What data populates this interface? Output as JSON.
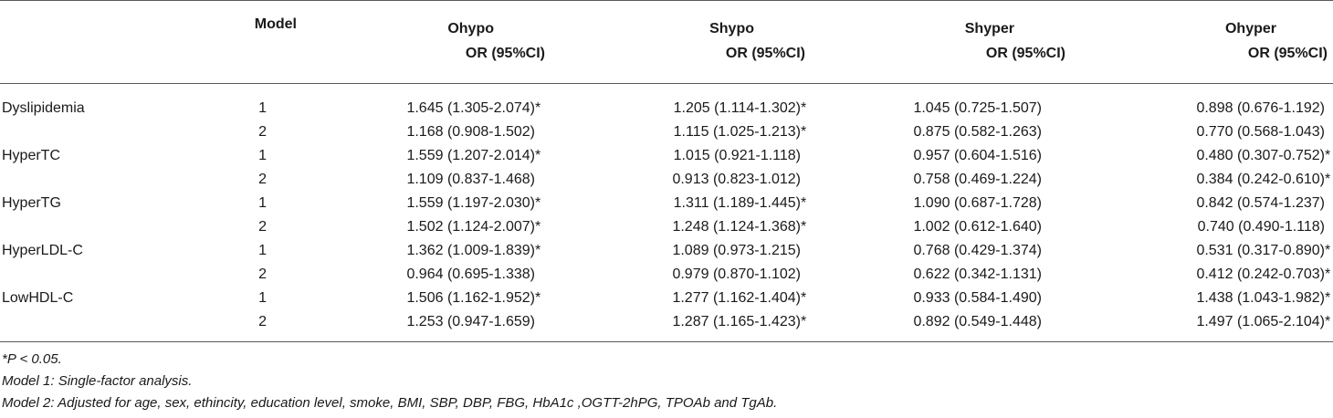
{
  "table": {
    "headers": {
      "model": "Model",
      "cols": [
        {
          "line1": "Ohypo",
          "line2": "OR (95%CI)"
        },
        {
          "line1": "Shypo",
          "line2": "OR (95%CI)"
        },
        {
          "line1": "Shyper",
          "line2": "OR (95%CI)"
        },
        {
          "line1": "Ohyper",
          "line2": "OR (95%CI)"
        }
      ]
    },
    "rows": [
      {
        "label": "Dyslipidemia",
        "model": "1",
        "c": [
          {
            "v": "1.645 (1.305-2.074)",
            "s": "*"
          },
          {
            "v": "1.205 (1.114-1.302)",
            "s": "*"
          },
          {
            "v": "1.045 (0.725-1.507)",
            "s": ""
          },
          {
            "v": "0.898 (0.676-1.192)",
            "s": ""
          }
        ]
      },
      {
        "label": "",
        "model": "2",
        "c": [
          {
            "v": "1.168 (0.908-1.502)",
            "s": ""
          },
          {
            "v": "1.115 (1.025-1.213)",
            "s": "*"
          },
          {
            "v": "0.875 (0.582-1.263)",
            "s": ""
          },
          {
            "v": "0.770 (0.568-1.043)",
            "s": ""
          }
        ]
      },
      {
        "label": "HyperTC",
        "model": "1",
        "c": [
          {
            "v": "1.559 (1.207-2.014)",
            "s": "*"
          },
          {
            "v": "1.015 (0.921-1.118)",
            "s": ""
          },
          {
            "v": "0.957 (0.604-1.516)",
            "s": ""
          },
          {
            "v": "0.480 (0.307-0.752)",
            "s": "*"
          }
        ]
      },
      {
        "label": "",
        "model": "2",
        "c": [
          {
            "v": "1.109 (0.837-1.468)",
            "s": ""
          },
          {
            "v": "0.913 (0.823-1.012)",
            "s": ""
          },
          {
            "v": "0.758 (0.469-1.224)",
            "s": ""
          },
          {
            "v": "0.384 (0.242-0.610)",
            "s": "*"
          }
        ]
      },
      {
        "label": "HyperTG",
        "model": "1",
        "c": [
          {
            "v": "1.559 (1.197-2.030)",
            "s": "*"
          },
          {
            "v": "1.311 (1.189-1.445)",
            "s": "*"
          },
          {
            "v": "1.090 (0.687-1.728)",
            "s": ""
          },
          {
            "v": "0.842 (0.574-1.237)",
            "s": ""
          }
        ]
      },
      {
        "label": "",
        "model": "2",
        "c": [
          {
            "v": "1.502 (1.124-2.007)",
            "s": "*"
          },
          {
            "v": "1.248 (1.124-1.368)",
            "s": "*"
          },
          {
            "v": "1.002 (0.612-1.640)",
            "s": ""
          },
          {
            "v": "0.740 (0.490-1.118)",
            "s": ""
          }
        ]
      },
      {
        "label": "HyperLDL-C",
        "model": "1",
        "c": [
          {
            "v": "1.362 (1.009-1.839)",
            "s": "*"
          },
          {
            "v": "1.089 (0.973-1.215)",
            "s": ""
          },
          {
            "v": "0.768 (0.429-1.374)",
            "s": ""
          },
          {
            "v": "0.531 (0.317-0.890)",
            "s": "*"
          }
        ]
      },
      {
        "label": "",
        "model": "2",
        "c": [
          {
            "v": "0.964 (0.695-1.338)",
            "s": ""
          },
          {
            "v": "0.979 (0.870-1.102)",
            "s": ""
          },
          {
            "v": "0.622 (0.342-1.131)",
            "s": ""
          },
          {
            "v": "0.412 (0.242-0.703)",
            "s": "*"
          }
        ]
      },
      {
        "label": "LowHDL-C",
        "model": "1",
        "c": [
          {
            "v": "1.506 (1.162-1.952)",
            "s": "*"
          },
          {
            "v": "1.277 (1.162-1.404)",
            "s": "*"
          },
          {
            "v": "0.933 (0.584-1.490)",
            "s": ""
          },
          {
            "v": "1.438 (1.043-1.982)",
            "s": "*"
          }
        ]
      },
      {
        "label": "",
        "model": "2",
        "c": [
          {
            "v": "1.253 (0.947-1.659)",
            "s": ""
          },
          {
            "v": "1.287 (1.165-1.423)",
            "s": "*"
          },
          {
            "v": "0.892 (0.549-1.448)",
            "s": ""
          },
          {
            "v": "1.497 (1.065-2.104)",
            "s": "*"
          }
        ]
      }
    ]
  },
  "notes": {
    "note1": "*P < 0.05.",
    "note2": "Model 1: Single-factor analysis.",
    "note3": "Model 2: Adjusted for age, sex, ethincity, education level, smoke, BMI, SBP, DBP, FBG, HbA1c ,OGTT-2hPG, TPOAb and TgAb."
  }
}
